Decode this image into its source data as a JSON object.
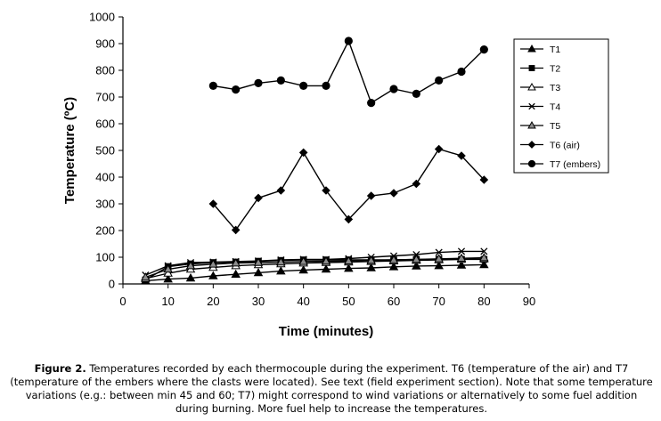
{
  "chart_data": {
    "type": "line",
    "xlabel": "Time (minutes)",
    "ylabel": "Temperature (ºC)",
    "xlim": [
      0,
      90
    ],
    "ylim": [
      0,
      1000
    ],
    "xticks": [
      "0",
      "10",
      "20",
      "30",
      "40",
      "50",
      "60",
      "70",
      "80",
      "90"
    ],
    "yticks": [
      "0",
      "100",
      "200",
      "300",
      "400",
      "500",
      "600",
      "700",
      "800",
      "900",
      "1000"
    ],
    "grid": false,
    "legend_position": "right",
    "series": [
      {
        "name": "T1",
        "marker": "triangle-filled",
        "x": [
          5,
          10,
          15,
          20,
          25,
          30,
          35,
          40,
          45,
          50,
          55,
          60,
          65,
          70,
          75,
          80
        ],
        "y": [
          12,
          18,
          22,
          30,
          36,
          42,
          48,
          52,
          55,
          58,
          60,
          64,
          67,
          68,
          70,
          72
        ]
      },
      {
        "name": "T2",
        "marker": "square",
        "x": [
          5,
          10,
          15,
          20,
          25,
          30,
          35,
          40,
          45,
          50,
          55,
          60,
          65,
          70,
          75,
          80
        ],
        "y": [
          15,
          65,
          75,
          80,
          82,
          85,
          88,
          90,
          90,
          90,
          90,
          90,
          92,
          92,
          92,
          92
        ]
      },
      {
        "name": "T3",
        "marker": "triangle-open",
        "x": [
          5,
          10,
          15,
          20,
          25,
          30,
          35,
          40,
          45,
          50,
          55,
          60,
          65,
          70,
          75,
          80
        ],
        "y": [
          20,
          40,
          55,
          62,
          68,
          72,
          75,
          78,
          80,
          82,
          84,
          86,
          88,
          90,
          92,
          94
        ]
      },
      {
        "name": "T4",
        "marker": "x",
        "x": [
          5,
          10,
          15,
          20,
          25,
          30,
          35,
          40,
          45,
          50,
          55,
          60,
          65,
          70,
          75,
          80
        ],
        "y": [
          33,
          68,
          80,
          82,
          84,
          86,
          90,
          92,
          92,
          95,
          100,
          105,
          110,
          118,
          122,
          122
        ]
      },
      {
        "name": "T5",
        "marker": "triangle-gray",
        "x": [
          5,
          10,
          15,
          20,
          25,
          30,
          35,
          40,
          45,
          50,
          55,
          60,
          65,
          70,
          75,
          80
        ],
        "y": [
          25,
          55,
          68,
          74,
          78,
          80,
          82,
          84,
          85,
          86,
          88,
          90,
          92,
          94,
          96,
          98
        ]
      },
      {
        "name": "T6 (air)",
        "marker": "diamond",
        "x": [
          20,
          25,
          30,
          35,
          40,
          45,
          50,
          55,
          60,
          65,
          70,
          75,
          80
        ],
        "y": [
          300,
          202,
          322,
          350,
          492,
          350,
          242,
          330,
          340,
          375,
          505,
          480,
          390
        ]
      },
      {
        "name": "T7 (embers)",
        "marker": "circle",
        "x": [
          20,
          25,
          30,
          35,
          40,
          45,
          50,
          55,
          60,
          65,
          70,
          75,
          80
        ],
        "y": [
          742,
          728,
          752,
          762,
          742,
          742,
          910,
          678,
          730,
          712,
          762,
          795,
          878
        ]
      }
    ]
  },
  "caption": {
    "label": "Figure 2.",
    "text": "Temperatures recorded by each thermocouple during the experiment. T6 (temperature of the air) and T7 (temperature of the embers where the clasts were located). See text (field experiment section). Note that some temperature variations (e.g.: between min 45 and 60; T7) might correspond to wind variations or alternatively to some fuel addition during burning. More fuel help to increase the temperatures."
  }
}
